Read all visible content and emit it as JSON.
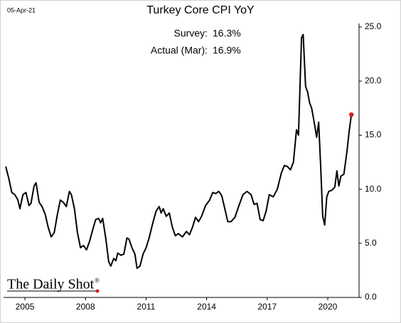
{
  "chart_data": {
    "type": "line",
    "title": "Turkey Core CPI YoY",
    "date": "05-Apr-21",
    "annotations": [
      {
        "label": "Survey:",
        "value": "16.3%"
      },
      {
        "label": "Actual (Mar):",
        "value": "16.9%"
      }
    ],
    "source": "The Daily Shot",
    "source_mark": "®",
    "x": [
      2004.05,
      2004.2,
      2004.35,
      2004.5,
      2004.65,
      2004.75,
      2004.9,
      2005.05,
      2005.2,
      2005.3,
      2005.45,
      2005.55,
      2005.7,
      2005.85,
      2006.0,
      2006.15,
      2006.3,
      2006.45,
      2006.6,
      2006.75,
      2006.9,
      2007.05,
      2007.2,
      2007.3,
      2007.45,
      2007.6,
      2007.75,
      2007.9,
      2008.05,
      2008.2,
      2008.35,
      2008.5,
      2008.65,
      2008.75,
      2008.85,
      2009.0,
      2009.15,
      2009.25,
      2009.4,
      2009.5,
      2009.6,
      2009.75,
      2009.9,
      2010.05,
      2010.15,
      2010.3,
      2010.45,
      2010.55,
      2010.7,
      2010.85,
      2011.0,
      2011.15,
      2011.35,
      2011.5,
      2011.65,
      2011.75,
      2011.85,
      2012.0,
      2012.15,
      2012.3,
      2012.45,
      2012.6,
      2012.8,
      2013.0,
      2013.15,
      2013.3,
      2013.45,
      2013.6,
      2013.75,
      2013.95,
      2014.15,
      2014.3,
      2014.45,
      2014.6,
      2014.75,
      2014.9,
      2015.05,
      2015.2,
      2015.4,
      2015.6,
      2015.8,
      2016.0,
      2016.2,
      2016.35,
      2016.5,
      2016.65,
      2016.8,
      2016.95,
      2017.1,
      2017.3,
      2017.5,
      2017.7,
      2017.85,
      2018.0,
      2018.15,
      2018.3,
      2018.45,
      2018.55,
      2018.7,
      2018.78,
      2018.9,
      2019.0,
      2019.1,
      2019.2,
      2019.3,
      2019.45,
      2019.55,
      2019.65,
      2019.75,
      2019.85,
      2019.95,
      2020.05,
      2020.2,
      2020.35,
      2020.45,
      2020.55,
      2020.65,
      2020.8,
      2020.95,
      2021.05,
      2021.17
    ],
    "series": [
      {
        "color": "#000000",
        "marker_color": "#d01f1f",
        "values": [
          12.1,
          11.0,
          9.7,
          9.5,
          9.0,
          8.2,
          9.5,
          9.7,
          8.5,
          8.7,
          10.3,
          10.6,
          8.8,
          8.4,
          7.7,
          6.5,
          5.6,
          6.0,
          7.6,
          9.0,
          8.8,
          8.4,
          9.8,
          9.5,
          8.2,
          6.0,
          4.6,
          4.8,
          4.4,
          5.2,
          6.2,
          7.2,
          7.3,
          6.9,
          7.3,
          5.5,
          3.3,
          2.9,
          3.6,
          3.4,
          4.1,
          3.9,
          4.0,
          5.5,
          5.4,
          4.6,
          4.0,
          2.7,
          2.9,
          4.0,
          4.6,
          5.5,
          7.0,
          8.0,
          8.4,
          7.8,
          8.2,
          7.5,
          7.8,
          6.5,
          5.7,
          5.9,
          5.6,
          6.1,
          5.8,
          6.5,
          7.4,
          7.0,
          7.5,
          8.5,
          9.0,
          9.7,
          9.6,
          9.8,
          9.4,
          8.2,
          7.0,
          7.0,
          7.4,
          8.5,
          9.5,
          9.8,
          9.5,
          8.6,
          8.7,
          7.2,
          7.1,
          8.0,
          9.5,
          9.3,
          10.0,
          11.5,
          12.2,
          12.1,
          11.8,
          12.5,
          15.5,
          15.0,
          24.0,
          24.3,
          19.5,
          19.0,
          18.0,
          17.5,
          16.5,
          14.8,
          16.2,
          12.0,
          7.5,
          6.7,
          9.3,
          9.8,
          9.9,
          10.2,
          11.7,
          10.3,
          11.2,
          11.4,
          13.5,
          15.2,
          16.9
        ]
      }
    ],
    "xlim": [
      2003.94,
      2021.55
    ],
    "xticks": [
      2005,
      2008,
      2011,
      2014,
      2017,
      2020
    ],
    "ylim": [
      0,
      25
    ],
    "yticks": [
      {
        "value": 0,
        "label": "0.0"
      },
      {
        "value": 5,
        "label": "5.0"
      },
      {
        "value": 10,
        "label": "10.0"
      },
      {
        "value": 15,
        "label": "15.0"
      },
      {
        "value": 20,
        "label": "20.0"
      },
      {
        "value": 25,
        "label": "25.0"
      }
    ]
  }
}
